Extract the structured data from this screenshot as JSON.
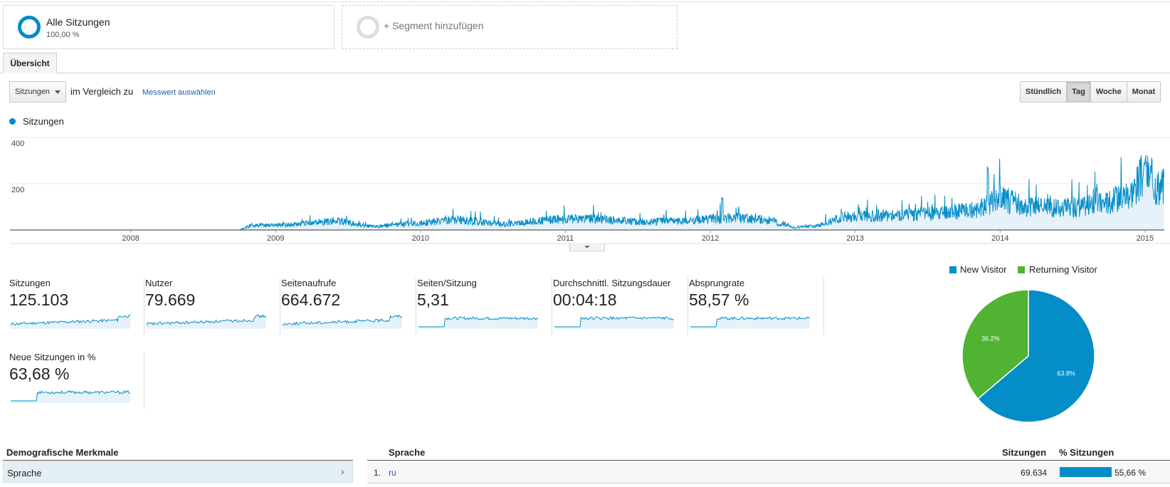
{
  "segments": {
    "active": {
      "name": "Alle Sitzungen",
      "percent": "100,00 %"
    },
    "add_label": "+ Segment hinzufügen"
  },
  "tabs": [
    {
      "label": "Übersicht"
    }
  ],
  "controls": {
    "metric_select": "Sitzungen",
    "compare_text": "im Vergleich zu",
    "pick_metric_link": "Messwert auswählen",
    "granularity": [
      "Stündlich",
      "Tag",
      "Woche",
      "Monat"
    ],
    "granularity_selected": "Tag"
  },
  "chart_data": {
    "type": "area",
    "legend": [
      "Sitzungen"
    ],
    "x": [
      "2008",
      "2009",
      "2010",
      "2011",
      "2012",
      "2013",
      "2014",
      "2015"
    ],
    "ylim": [
      0,
      400
    ],
    "y_ticks": [
      "400",
      "200"
    ],
    "series": [
      {
        "name": "Sitzungen",
        "color": "#058dc7",
        "monthly_baseline": [
          {
            "date": "2007-03",
            "v": 0
          },
          {
            "date": "2008-10",
            "v": 0
          },
          {
            "date": "2008-11",
            "v": 20
          },
          {
            "date": "2009-03",
            "v": 25
          },
          {
            "date": "2009-06",
            "v": 40
          },
          {
            "date": "2009-09",
            "v": 15
          },
          {
            "date": "2010-01",
            "v": 30
          },
          {
            "date": "2010-04",
            "v": 45
          },
          {
            "date": "2010-08",
            "v": 25
          },
          {
            "date": "2010-12",
            "v": 45
          },
          {
            "date": "2011-03",
            "v": 50
          },
          {
            "date": "2011-07",
            "v": 35
          },
          {
            "date": "2011-11",
            "v": 40
          },
          {
            "date": "2012-03",
            "v": 55
          },
          {
            "date": "2012-06",
            "v": 40
          },
          {
            "date": "2012-08",
            "v": 10
          },
          {
            "date": "2012-10",
            "v": 20
          },
          {
            "date": "2012-12",
            "v": 55
          },
          {
            "date": "2013-04",
            "v": 65
          },
          {
            "date": "2013-08",
            "v": 70
          },
          {
            "date": "2013-11",
            "v": 90
          },
          {
            "date": "2014-01",
            "v": 140
          },
          {
            "date": "2014-03",
            "v": 100
          },
          {
            "date": "2014-07",
            "v": 95
          },
          {
            "date": "2014-10",
            "v": 120
          },
          {
            "date": "2014-12",
            "v": 170
          },
          {
            "date": "2015-01",
            "v": 250
          },
          {
            "date": "2015-02",
            "v": 190
          }
        ],
        "peaks": [
          {
            "date": "2012-02",
            "v": 145
          },
          {
            "date": "2013-12",
            "v": 280
          },
          {
            "date": "2014-02",
            "v": 175
          },
          {
            "date": "2014-09",
            "v": 200
          },
          {
            "date": "2015-01",
            "v": 310
          }
        ]
      }
    ]
  },
  "metrics": [
    {
      "title": "Sitzungen",
      "value": "125.103"
    },
    {
      "title": "Nutzer",
      "value": "79.669"
    },
    {
      "title": "Seitenaufrufe",
      "value": "664.672"
    },
    {
      "title": "Seiten/Sitzung",
      "value": "5,31"
    },
    {
      "title": "Durchschnittl. Sitzungsdauer",
      "value": "00:04:18"
    },
    {
      "title": "Absprungrate",
      "value": "58,57 %"
    },
    {
      "title": "Neue Sitzungen in %",
      "value": "63,68 %"
    }
  ],
  "pie": {
    "type": "pie",
    "legend": [
      {
        "label": "New Visitor",
        "color": "#058dc7"
      },
      {
        "label": "Returning Visitor",
        "color": "#50b432"
      }
    ],
    "slices": [
      {
        "label": "63.8%",
        "value": 63.8,
        "color": "#058dc7"
      },
      {
        "label": "36.2%",
        "value": 36.2,
        "color": "#50b432"
      }
    ]
  },
  "demographics": {
    "header": "Demografische Merkmale",
    "items": [
      {
        "label": "Sprache",
        "arrow": "›"
      }
    ]
  },
  "table": {
    "headers": {
      "dimension": "Sprache",
      "sessions": "Sitzungen",
      "percent": "% Sitzungen"
    },
    "rows": [
      {
        "rank": "1.",
        "name": "ru",
        "sessions": "69.634",
        "percent": "55,66 %",
        "percent_value": 55.66
      }
    ]
  }
}
